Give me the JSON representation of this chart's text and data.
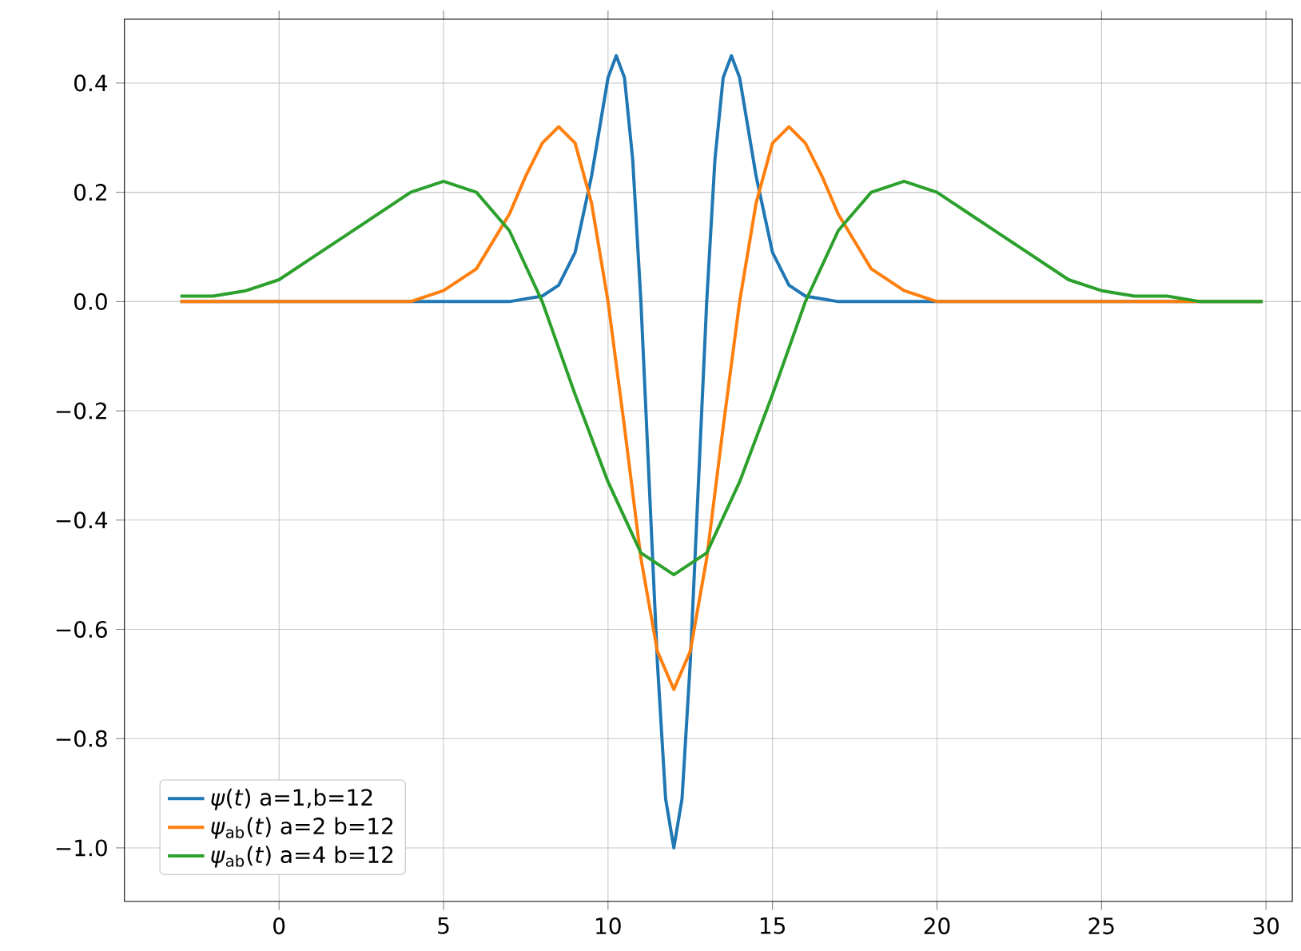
{
  "chart_data": {
    "type": "line",
    "grid": true,
    "legend": "bottom left",
    "line_style": "solid",
    "xlim": [
      -4.7,
      30.8
    ],
    "ylim": [
      -1.098,
      0.517
    ],
    "xticks": [
      0,
      5,
      10,
      15,
      20,
      25,
      30
    ],
    "yticks": [
      {
        "value": -1.0,
        "label": "−1.0"
      },
      {
        "value": -0.8,
        "label": "−0.8"
      },
      {
        "value": -0.6,
        "label": "−0.6"
      },
      {
        "value": -0.4,
        "label": "−0.4"
      },
      {
        "value": -0.2,
        "label": "−0.2"
      },
      {
        "value": 0.0,
        "label": "0.0"
      },
      0.2,
      0.4
    ],
    "series": [
      {
        "name": "*ψ*(*t*) a=1,b=12",
        "color": "#1f77b4",
        "x": [
          -3,
          6,
          7,
          8,
          8.5,
          9,
          9.5,
          9.75,
          10,
          10.25,
          10.5,
          10.75,
          11,
          11.25,
          11.5,
          11.75,
          12,
          12.25,
          12.5,
          12.75,
          13,
          13.25,
          13.5,
          13.75,
          14,
          14.25,
          14.5,
          15,
          15.5,
          16,
          17,
          18,
          29.9
        ],
        "values": [
          0,
          0,
          0,
          0.01,
          0.03,
          0.09,
          0.23,
          0.32,
          0.41,
          0.45,
          0.41,
          0.26,
          0,
          -0.33,
          -0.66,
          -0.91,
          -1.0,
          -0.91,
          -0.66,
          -0.33,
          0,
          0.26,
          0.41,
          0.45,
          0.41,
          0.32,
          0.23,
          0.09,
          0.03,
          0.01,
          0,
          0,
          0
        ]
      },
      {
        "name": "*ψ*$_{ab}$(*t*) a=2 b=12",
        "color": "#ff7f0e",
        "x": [
          -3,
          2,
          4,
          5,
          6,
          6.5,
          7,
          7.5,
          8,
          8.5,
          9,
          9.5,
          10,
          10.5,
          11,
          11.5,
          12,
          12.5,
          13,
          13.5,
          14,
          14.5,
          15,
          15.5,
          16,
          16.5,
          17,
          17.5,
          18,
          19,
          20,
          22,
          29.9
        ],
        "values": [
          0,
          0,
          0,
          0.02,
          0.06,
          0.11,
          0.16,
          0.23,
          0.29,
          0.32,
          0.29,
          0.18,
          0,
          -0.23,
          -0.47,
          -0.64,
          -0.71,
          -0.64,
          -0.47,
          -0.23,
          0,
          0.18,
          0.29,
          0.32,
          0.29,
          0.23,
          0.16,
          0.11,
          0.06,
          0.02,
          0,
          0,
          0
        ]
      },
      {
        "name": "*ψ*$_{ab}$(*t*) a=4 b=12",
        "color": "#2ca02c",
        "x": [
          -3,
          -2,
          -1,
          0,
          1,
          2,
          3,
          4,
          5,
          6,
          7,
          8,
          9,
          10,
          11,
          12,
          13,
          14,
          15,
          16,
          17,
          18,
          19,
          20,
          21,
          22,
          23,
          24,
          25,
          26,
          27,
          28,
          29.9
        ],
        "values": [
          0.01,
          0.01,
          0.02,
          0.04,
          0.08,
          0.12,
          0.16,
          0.2,
          0.22,
          0.2,
          0.13,
          0,
          -0.17,
          -0.33,
          -0.46,
          -0.5,
          -0.46,
          -0.33,
          -0.17,
          0,
          0.13,
          0.2,
          0.22,
          0.2,
          0.16,
          0.12,
          0.08,
          0.04,
          0.02,
          0.01,
          0.01,
          0,
          0
        ]
      }
    ]
  }
}
